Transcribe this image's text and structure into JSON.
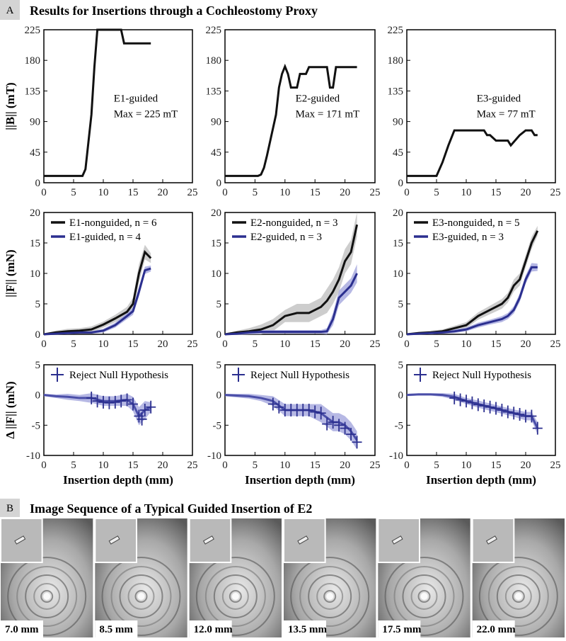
{
  "panel_a": {
    "label": "A",
    "title": "Results for Insertions through a Cochleostomy Proxy"
  },
  "chart_data": [
    {
      "type": "line",
      "ylabel": "||B|| (mT)",
      "xlim": [
        0,
        25
      ],
      "ylim": [
        0,
        225
      ],
      "xticks": [
        0,
        5,
        10,
        15,
        20,
        25
      ],
      "yticks": [
        0,
        45,
        90,
        135,
        180,
        225
      ],
      "annotation": [
        "E1-guided",
        "Max = 225 mT"
      ],
      "series": [
        {
          "color": "#111111",
          "x": [
            0,
            6.5,
            7,
            7.5,
            8,
            8.5,
            9,
            13,
            13.5,
            18
          ],
          "values": [
            10,
            10,
            20,
            60,
            100,
            170,
            225,
            225,
            205,
            205
          ]
        }
      ]
    },
    {
      "type": "line",
      "xlim": [
        0,
        25
      ],
      "ylim": [
        0,
        225
      ],
      "xticks": [
        0,
        5,
        10,
        15,
        20,
        25
      ],
      "yticks": [
        0,
        45,
        90,
        135,
        180,
        225
      ],
      "annotation": [
        "E2-guided",
        "Max = 171 mT"
      ],
      "series": [
        {
          "color": "#111111",
          "x": [
            0,
            5.5,
            6,
            6.5,
            7,
            7.5,
            8,
            8.5,
            9,
            9.5,
            10,
            10.5,
            11,
            12,
            12.5,
            13.5,
            14,
            15,
            17,
            17.5,
            18,
            18.5,
            19,
            22
          ],
          "values": [
            10,
            10,
            12,
            22,
            40,
            60,
            80,
            100,
            140,
            160,
            171,
            160,
            140,
            140,
            160,
            160,
            170,
            170,
            170,
            140,
            140,
            170,
            170,
            170
          ]
        }
      ]
    },
    {
      "type": "line",
      "xlim": [
        0,
        25
      ],
      "ylim": [
        0,
        225
      ],
      "xticks": [
        0,
        5,
        10,
        15,
        20,
        25
      ],
      "yticks": [
        0,
        45,
        90,
        135,
        180,
        225
      ],
      "annotation": [
        "E3-guided",
        "Max = 77 mT"
      ],
      "series": [
        {
          "color": "#111111",
          "x": [
            0,
            5,
            5.5,
            6,
            7,
            8,
            10,
            13,
            13.5,
            14,
            15,
            17,
            17.5,
            19,
            20,
            21,
            21.5,
            22
          ],
          "values": [
            10,
            10,
            20,
            30,
            55,
            77,
            77,
            77,
            70,
            70,
            62,
            62,
            55,
            70,
            77,
            77,
            70,
            70
          ]
        }
      ]
    },
    {
      "type": "line",
      "ylabel": "||F|| (mN)",
      "xlim": [
        0,
        25
      ],
      "ylim": [
        0,
        20
      ],
      "xticks": [
        0,
        5,
        10,
        15,
        20,
        25
      ],
      "yticks": [
        0,
        5,
        10,
        15,
        20
      ],
      "legend": "upper left",
      "series": [
        {
          "name": "E1-nonguided, n = 6",
          "color": "#111111",
          "band_color": "#c4c4c4",
          "x": [
            0,
            2,
            4,
            6,
            8,
            10,
            12,
            14,
            15,
            16,
            17,
            18
          ],
          "values": [
            0,
            0.3,
            0.5,
            0.6,
            0.8,
            1.6,
            2.6,
            3.7,
            5,
            10,
            13.5,
            12.5
          ],
          "errors": [
            0.1,
            0.3,
            0.4,
            0.4,
            0.5,
            0.5,
            0.6,
            0.8,
            1,
            1.5,
            1.2,
            0.8
          ]
        },
        {
          "name": "E1-guided, n = 4",
          "color": "#2b2f8f",
          "band_color": "#a9abdf",
          "x": [
            0,
            2,
            4,
            6,
            8,
            10,
            12,
            14,
            15,
            16,
            17,
            18
          ],
          "values": [
            0,
            0.1,
            0.2,
            0.3,
            0.3,
            0.6,
            1.5,
            3,
            3.8,
            7,
            10.5,
            10.8
          ],
          "errors": [
            0.1,
            0.1,
            0.2,
            0.2,
            0.2,
            0.3,
            0.4,
            0.5,
            0.6,
            0.8,
            0.6,
            0.5
          ]
        }
      ]
    },
    {
      "type": "line",
      "xlim": [
        0,
        25
      ],
      "ylim": [
        0,
        20
      ],
      "xticks": [
        0,
        5,
        10,
        15,
        20,
        25
      ],
      "yticks": [
        0,
        5,
        10,
        15,
        20
      ],
      "legend": "upper left",
      "series": [
        {
          "name": "E2-nonguided, n = 3",
          "color": "#111111",
          "band_color": "#c4c4c4",
          "x": [
            0,
            2,
            4,
            6,
            8,
            10,
            12,
            14,
            16,
            17,
            18,
            19,
            20,
            21,
            22
          ],
          "values": [
            0,
            0.3,
            0.5,
            0.8,
            1.5,
            3,
            3.5,
            3.5,
            4.5,
            5.5,
            7,
            9,
            12,
            13.5,
            18
          ],
          "errors": [
            0.1,
            0.3,
            0.5,
            0.8,
            1,
            1,
            1.5,
            1.5,
            1.5,
            2,
            2,
            2,
            2,
            2,
            2
          ]
        },
        {
          "name": "E2-guided, n = 3",
          "color": "#2b2f8f",
          "band_color": "#a9abdf",
          "x": [
            0,
            2,
            4,
            6,
            8,
            10,
            12,
            14,
            16,
            17,
            18,
            19,
            20,
            21,
            22
          ],
          "values": [
            0,
            0.1,
            0.3,
            0.4,
            0.4,
            0.4,
            0.4,
            0.4,
            0.4,
            0.5,
            2.5,
            6,
            7,
            8,
            10
          ],
          "errors": [
            0.1,
            0.2,
            0.3,
            0.3,
            0.3,
            0.3,
            0.3,
            0.3,
            0.3,
            0.5,
            1,
            1.2,
            1.2,
            1.2,
            1.5
          ]
        }
      ]
    },
    {
      "type": "line",
      "xlim": [
        0,
        25
      ],
      "ylim": [
        0,
        20
      ],
      "xticks": [
        0,
        5,
        10,
        15,
        20,
        25
      ],
      "yticks": [
        0,
        5,
        10,
        15,
        20
      ],
      "legend": "upper left",
      "series": [
        {
          "name": "E3-nonguided, n = 5",
          "color": "#111111",
          "band_color": "#c4c4c4",
          "x": [
            0,
            2,
            4,
            6,
            8,
            10,
            12,
            14,
            16,
            17,
            18,
            19,
            20,
            21,
            22
          ],
          "values": [
            0,
            0.2,
            0.3,
            0.5,
            1,
            1.5,
            3,
            4,
            5,
            6,
            8,
            9,
            12,
            15,
            17
          ],
          "errors": [
            0.1,
            0.2,
            0.3,
            0.3,
            0.4,
            0.5,
            0.6,
            0.7,
            0.8,
            0.8,
            1,
            1,
            1,
            1,
            0.8
          ]
        },
        {
          "name": "E3-guided, n = 3",
          "color": "#2b2f8f",
          "band_color": "#a9abdf",
          "x": [
            0,
            2,
            4,
            6,
            8,
            10,
            12,
            14,
            16,
            17,
            18,
            19,
            20,
            21,
            22
          ],
          "values": [
            0,
            0.1,
            0.2,
            0.3,
            0.5,
            0.8,
            1.5,
            2,
            2.5,
            3,
            4,
            6,
            9,
            11,
            11
          ],
          "errors": [
            0.1,
            0.1,
            0.2,
            0.2,
            0.3,
            0.3,
            0.4,
            0.4,
            0.5,
            0.5,
            0.6,
            0.7,
            0.7,
            0.7,
            0.6
          ]
        }
      ]
    },
    {
      "type": "line",
      "ylabel": "Δ ||F|| (mN)",
      "xlabel": "Insertion depth (mm)",
      "xlim": [
        0,
        25
      ],
      "ylim": [
        -10,
        5
      ],
      "xticks": [
        0,
        5,
        10,
        15,
        20,
        25
      ],
      "yticks": [
        -10,
        -5,
        0,
        5
      ],
      "legend": "upper left",
      "series": [
        {
          "color": "#4a4ea8",
          "band_color": "#a9abdf",
          "x": [
            0,
            2,
            4,
            6,
            8,
            10,
            12,
            14,
            15,
            16,
            17,
            18
          ],
          "values": [
            0,
            -0.2,
            -0.3,
            -0.5,
            -0.5,
            -1,
            -1,
            -0.8,
            -1.5,
            -3.5,
            -2.5,
            -2
          ],
          "errors": [
            0.2,
            0.3,
            0.5,
            0.5,
            0.8,
            0.8,
            0.8,
            1,
            1.2,
            1.5,
            1.5,
            0.8
          ]
        },
        {
          "name": "Reject Null Hypothesis",
          "marker": "cross",
          "color": "#2b2f8f",
          "x": [
            8,
            9,
            10,
            11,
            12,
            13,
            14,
            15,
            16,
            16.5,
            17,
            18
          ],
          "values": [
            -0.5,
            -1,
            -1.2,
            -1.3,
            -1.2,
            -1,
            -0.8,
            -1.5,
            -3.5,
            -4,
            -2.5,
            -2
          ]
        }
      ]
    },
    {
      "type": "line",
      "xlabel": "Insertion depth (mm)",
      "xlim": [
        0,
        25
      ],
      "ylim": [
        -10,
        5
      ],
      "xticks": [
        0,
        5,
        10,
        15,
        20,
        25
      ],
      "yticks": [
        -10,
        -5,
        0,
        5
      ],
      "legend": "upper left",
      "series": [
        {
          "color": "#4a4ea8",
          "band_color": "#a9abdf",
          "x": [
            0,
            2,
            4,
            6,
            8,
            10,
            12,
            14,
            16,
            18,
            19,
            20,
            21,
            22
          ],
          "values": [
            0,
            -0.1,
            -0.2,
            -0.5,
            -1,
            -2.5,
            -2.5,
            -2.5,
            -3,
            -4.5,
            -4.5,
            -5,
            -6,
            -7.5
          ],
          "errors": [
            0.2,
            0.3,
            0.4,
            0.5,
            0.8,
            1,
            1,
            1,
            1.5,
            1.5,
            1.5,
            1.5,
            1.5,
            1.5
          ]
        },
        {
          "name": "Reject Null Hypothesis",
          "marker": "cross",
          "color": "#2b2f8f",
          "x": [
            8,
            9,
            10,
            11,
            12,
            13,
            14,
            15,
            16,
            17,
            18,
            19,
            20,
            21,
            22
          ],
          "values": [
            -1.5,
            -2,
            -2.5,
            -2.5,
            -2.5,
            -2.5,
            -2.5,
            -2.8,
            -3,
            -4.8,
            -4.5,
            -5,
            -5.5,
            -6.5,
            -7.8
          ]
        }
      ]
    },
    {
      "type": "line",
      "xlabel": "Insertion depth (mm)",
      "xlim": [
        0,
        25
      ],
      "ylim": [
        -10,
        5
      ],
      "xticks": [
        0,
        5,
        10,
        15,
        20,
        25
      ],
      "yticks": [
        -10,
        -5,
        0,
        5
      ],
      "legend": "upper left",
      "series": [
        {
          "color": "#4a4ea8",
          "band_color": "#a9abdf",
          "x": [
            0,
            2,
            4,
            6,
            8,
            10,
            12,
            14,
            16,
            18,
            20,
            21,
            22
          ],
          "values": [
            0,
            0.1,
            0.1,
            0,
            -0.3,
            -1,
            -1.5,
            -2,
            -2.5,
            -3,
            -3.5,
            -3.5,
            -5.5
          ],
          "errors": [
            0.2,
            0.2,
            0.2,
            0.3,
            0.5,
            0.5,
            0.6,
            0.6,
            0.6,
            0.6,
            0.7,
            0.7,
            1
          ]
        },
        {
          "name": "Reject Null Hypothesis",
          "marker": "cross",
          "color": "#2b2f8f",
          "x": [
            8,
            9,
            10,
            11,
            12,
            13,
            14,
            15,
            16,
            17,
            18,
            19,
            20,
            21,
            22
          ],
          "values": [
            -0.5,
            -0.8,
            -1,
            -1.3,
            -1.6,
            -1.8,
            -2,
            -2.2,
            -2.5,
            -2.8,
            -3,
            -3.2,
            -3.5,
            -3.5,
            -5.5
          ]
        }
      ]
    }
  ],
  "panel_b": {
    "label": "B",
    "title": "Image Sequence of a Typical Guided Insertion of E2",
    "images": [
      {
        "caption": "7.0 mm"
      },
      {
        "caption": "8.5 mm"
      },
      {
        "caption": "12.0 mm"
      },
      {
        "caption": "13.5 mm"
      },
      {
        "caption": "17.5 mm"
      },
      {
        "caption": "22.0 mm"
      }
    ]
  }
}
